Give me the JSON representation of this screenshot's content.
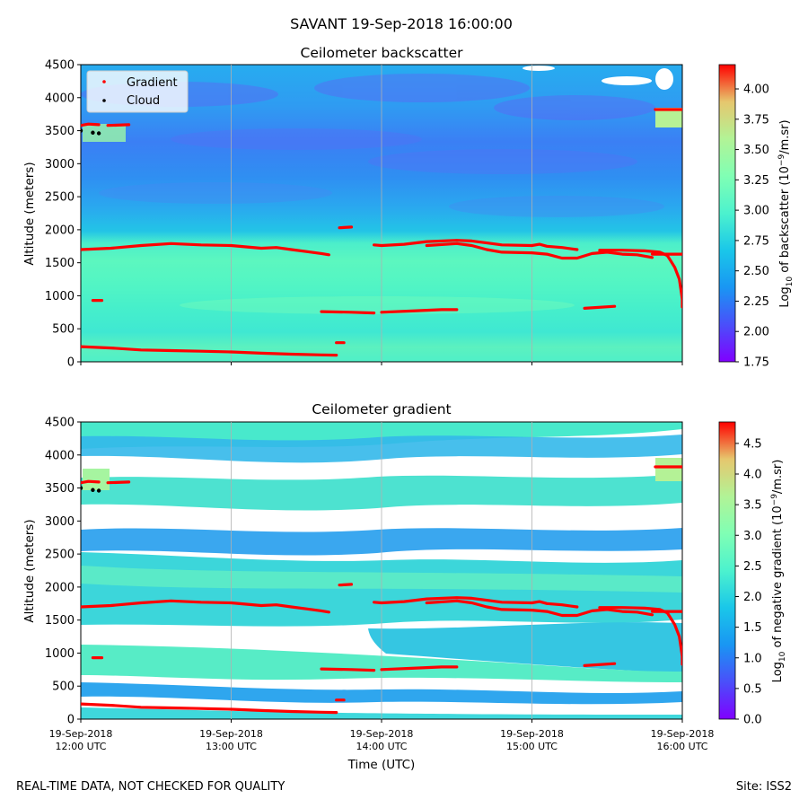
{
  "suptitle": "SAVANT 19-Sep-2018 16:00:00",
  "footer": {
    "left": "REAL-TIME DATA, NOT CHECKED FOR QUALITY",
    "right": "Site: ISS2"
  },
  "chart_data": [
    {
      "type": "heatmap",
      "title": "Ceilometer backscatter",
      "ylabel": "Altitude (meters)",
      "ylim": [
        0,
        4500
      ],
      "yticks": [
        "0",
        "500",
        "1000",
        "1500",
        "2000",
        "2500",
        "3000",
        "3500",
        "4000",
        "4500"
      ],
      "xlim_hours_utc": [
        12,
        16
      ],
      "colorbar": {
        "label_prefix": "Log",
        "label_sub": "10",
        "label_mid": " of backscatter (10",
        "label_sup": "−9",
        "label_suffix": "/m.sr)",
        "range": [
          1.75,
          4.2
        ],
        "ticks": [
          "1.75",
          "2.00",
          "2.25",
          "2.50",
          "2.75",
          "3.00",
          "3.25",
          "3.50",
          "3.75",
          "4.00"
        ]
      },
      "legend": {
        "location": "upper-left",
        "entries": [
          "Gradient",
          "Cloud"
        ]
      }
    },
    {
      "type": "heatmap",
      "title": "Ceilometer gradient",
      "ylabel": "Altitude (meters)",
      "xlabel": "Time (UTC)",
      "ylim": [
        0,
        4500
      ],
      "yticks": [
        "0",
        "500",
        "1000",
        "1500",
        "2000",
        "2500",
        "3000",
        "3500",
        "4000",
        "4500"
      ],
      "xlim_hours_utc": [
        12,
        16
      ],
      "xticks": [
        {
          "hour": 12,
          "line1": "19-Sep-2018",
          "line2": "12:00 UTC"
        },
        {
          "hour": 13,
          "line1": "19-Sep-2018",
          "line2": "13:00 UTC"
        },
        {
          "hour": 14,
          "line1": "19-Sep-2018",
          "line2": "14:00 UTC"
        },
        {
          "hour": 15,
          "line1": "19-Sep-2018",
          "line2": "15:00 UTC"
        },
        {
          "hour": 16,
          "line1": "19-Sep-2018",
          "line2": "16:00 UTC"
        }
      ],
      "colorbar": {
        "label_prefix": "Log",
        "label_sub": "10",
        "label_mid": " of negative gradient (10",
        "label_sup": "−9",
        "label_suffix": "/m.sr)",
        "range": [
          0.0,
          4.85
        ],
        "ticks": [
          "0.0",
          "0.5",
          "1.0",
          "1.5",
          "2.0",
          "2.5",
          "3.0",
          "3.5",
          "4.0",
          "4.5"
        ]
      }
    }
  ],
  "series": {
    "gradient_color": "#ff0000",
    "cloud_color": "#000000",
    "gradient_segments": [
      [
        [
          12.0,
          1700
        ],
        [
          12.2,
          1720
        ],
        [
          12.4,
          1760
        ],
        [
          12.6,
          1790
        ],
        [
          12.8,
          1770
        ],
        [
          13.0,
          1760
        ],
        [
          13.1,
          1740
        ],
        [
          13.2,
          1720
        ],
        [
          13.3,
          1730
        ],
        [
          13.4,
          1700
        ],
        [
          13.5,
          1670
        ],
        [
          13.6,
          1640
        ],
        [
          13.65,
          1620
        ]
      ],
      [
        [
          13.95,
          1770
        ],
        [
          14.0,
          1760
        ],
        [
          14.15,
          1780
        ],
        [
          14.3,
          1820
        ],
        [
          14.5,
          1840
        ],
        [
          14.6,
          1830
        ],
        [
          14.7,
          1800
        ],
        [
          14.8,
          1770
        ],
        [
          15.0,
          1760
        ],
        [
          15.05,
          1780
        ],
        [
          15.1,
          1750
        ],
        [
          15.2,
          1730
        ],
        [
          15.3,
          1700
        ]
      ],
      [
        [
          14.3,
          1760
        ],
        [
          14.5,
          1790
        ],
        [
          14.6,
          1760
        ],
        [
          14.7,
          1700
        ],
        [
          14.8,
          1660
        ],
        [
          15.0,
          1650
        ],
        [
          15.1,
          1630
        ],
        [
          15.2,
          1570
        ],
        [
          15.3,
          1570
        ],
        [
          15.4,
          1640
        ],
        [
          15.5,
          1660
        ],
        [
          15.6,
          1630
        ],
        [
          15.7,
          1620
        ],
        [
          15.8,
          1580
        ]
      ],
      [
        [
          15.45,
          1690
        ],
        [
          15.6,
          1690
        ],
        [
          15.75,
          1680
        ],
        [
          15.85,
          1660
        ],
        [
          15.9,
          1610
        ],
        [
          15.92,
          1540
        ],
        [
          15.95,
          1430
        ],
        [
          15.98,
          1250
        ],
        [
          16.0,
          950
        ],
        [
          16.0,
          830
        ]
      ],
      [
        [
          15.8,
          1630
        ],
        [
          16.0,
          1630
        ]
      ],
      [
        [
          12.0,
          230
        ],
        [
          12.2,
          210
        ],
        [
          12.4,
          180
        ],
        [
          12.6,
          170
        ],
        [
          12.8,
          160
        ],
        [
          13.0,
          150
        ],
        [
          13.2,
          130
        ],
        [
          13.4,
          115
        ],
        [
          13.6,
          105
        ],
        [
          13.7,
          100
        ]
      ],
      [
        [
          13.6,
          760
        ],
        [
          13.8,
          750
        ],
        [
          13.95,
          740
        ]
      ],
      [
        [
          14.0,
          750
        ],
        [
          14.2,
          770
        ],
        [
          14.4,
          790
        ],
        [
          14.5,
          790
        ]
      ],
      [
        [
          15.35,
          810
        ],
        [
          15.55,
          840
        ]
      ],
      [
        [
          13.72,
          2030
        ],
        [
          13.8,
          2040
        ]
      ],
      [
        [
          13.7,
          290
        ],
        [
          13.75,
          290
        ]
      ],
      [
        [
          12.0,
          3580
        ],
        [
          12.05,
          3600
        ],
        [
          12.12,
          3590
        ]
      ],
      [
        [
          12.18,
          3580
        ],
        [
          12.32,
          3590
        ]
      ],
      [
        [
          15.82,
          3820
        ],
        [
          16.0,
          3820
        ]
      ],
      [
        [
          12.08,
          930
        ],
        [
          12.14,
          930
        ]
      ]
    ],
    "cloud_points": [
      [
        12.08,
        3470
      ],
      [
        12.12,
        3460
      ],
      [
        12.0,
        3500
      ]
    ]
  }
}
